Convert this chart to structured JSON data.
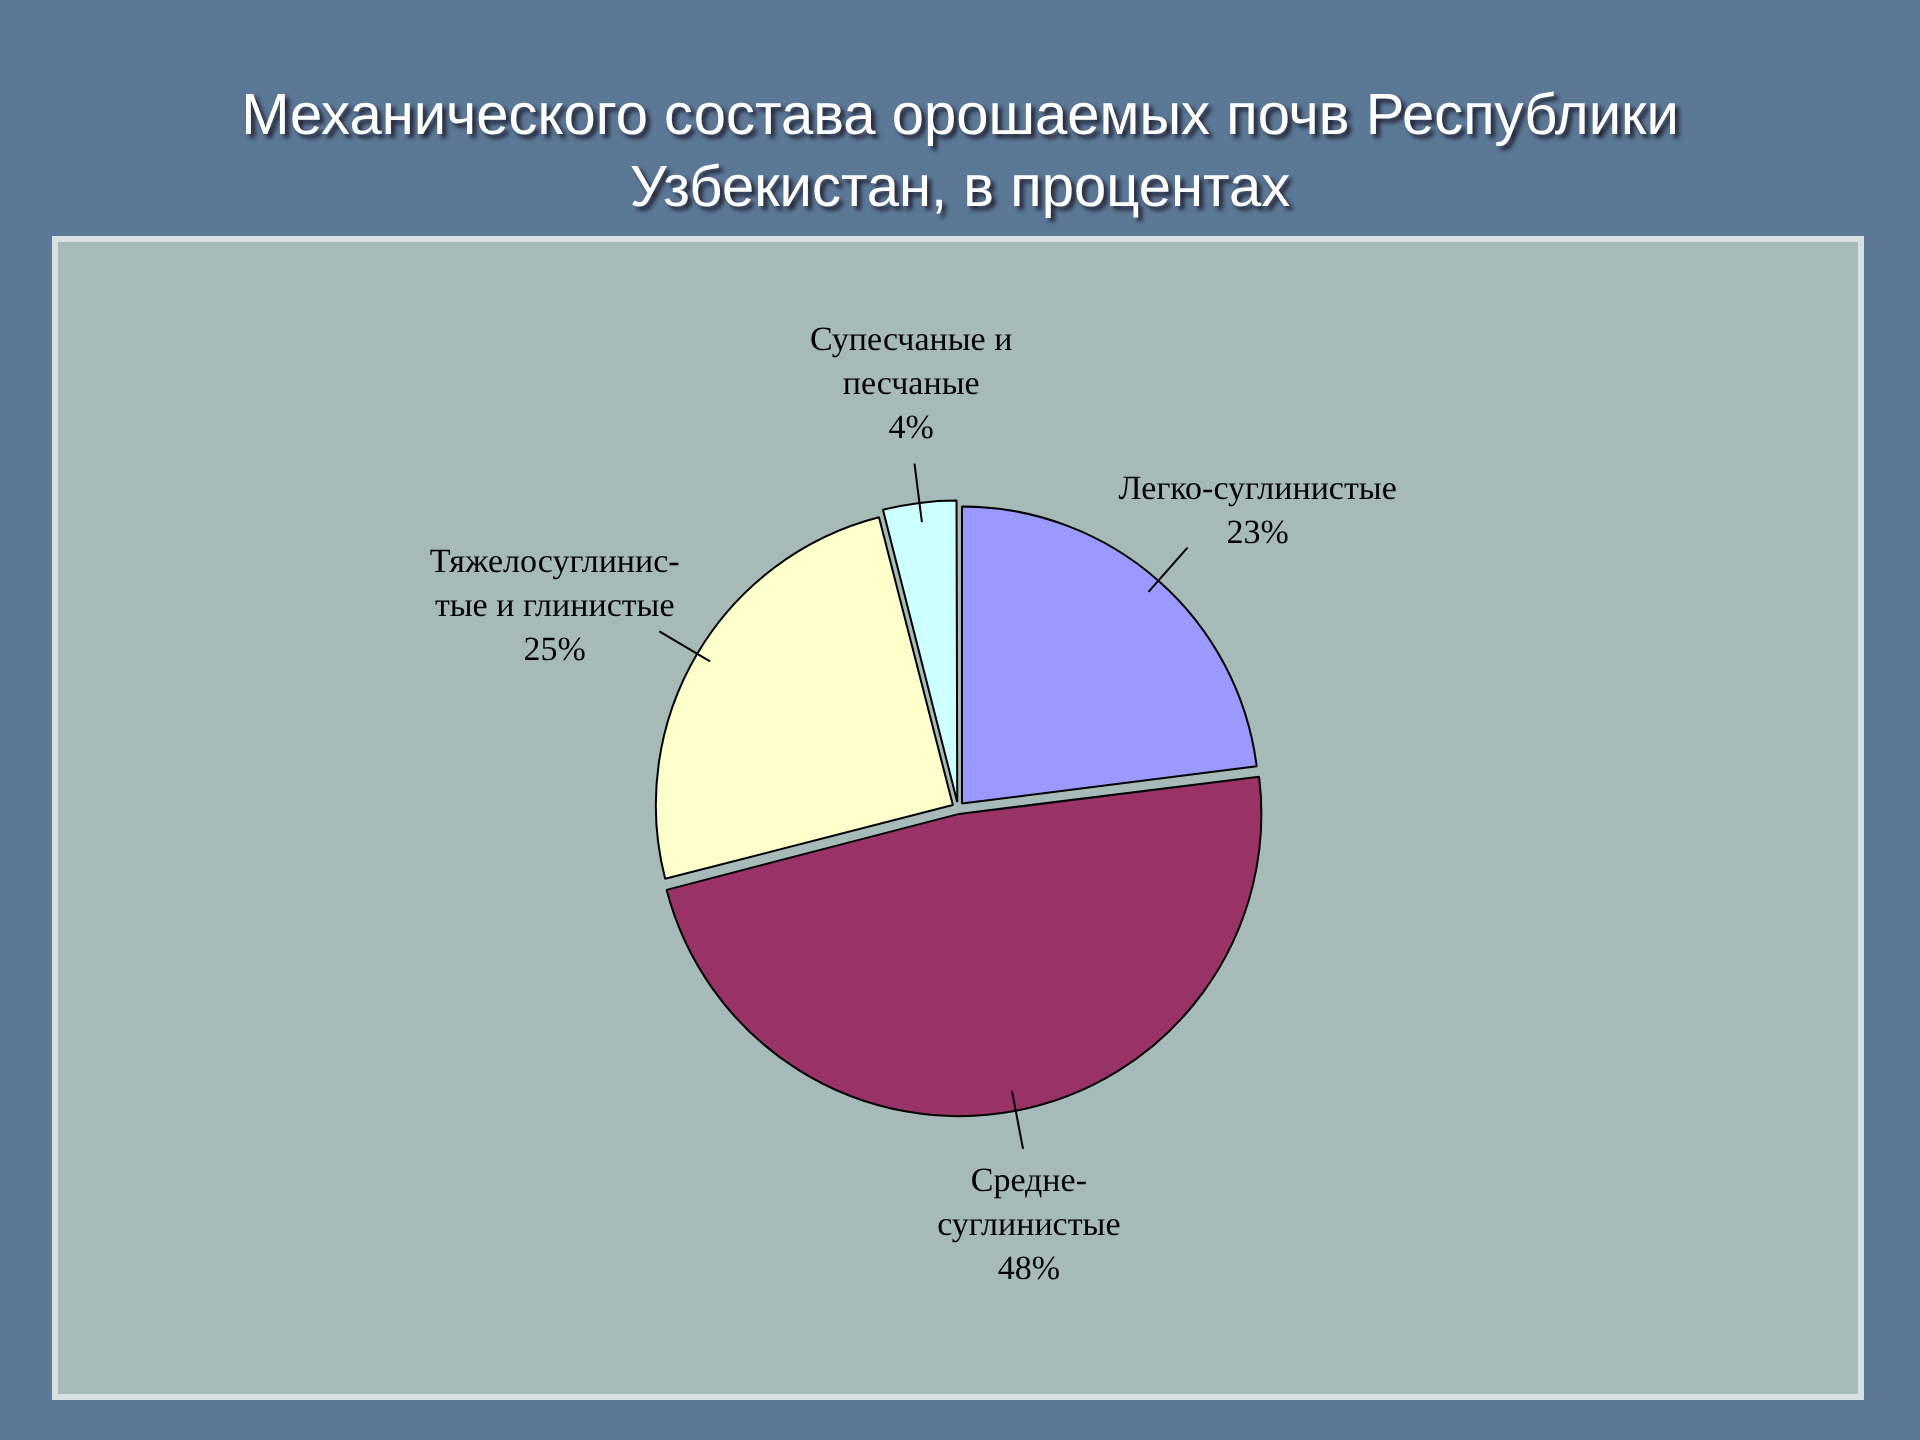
{
  "chart_data": {
    "type": "pie",
    "title": "Механического состава орошаемых почв Республики Узбекистан, в процентах",
    "categories": [
      "Легко-суглинистые",
      "Средне-\nсуглинистые",
      "Тяжелосуглинис-\nтые и глинистые",
      "Супесчаные и\nпесчаные"
    ],
    "values": [
      23,
      48,
      25,
      4
    ],
    "value_labels": [
      "23%",
      "48%",
      "25%",
      "4%"
    ],
    "colors": [
      "#9999ff",
      "#993366",
      "#ffffcc",
      "#ccffff"
    ],
    "legend": false
  }
}
